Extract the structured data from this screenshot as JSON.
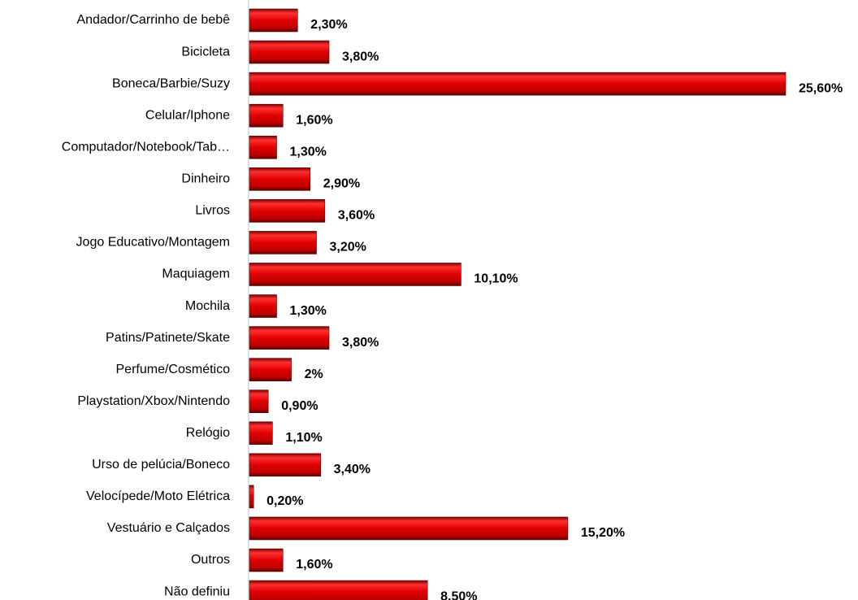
{
  "chart_data": {
    "type": "bar",
    "orientation": "horizontal",
    "color": "#e00000",
    "categories": [
      "Andador/Carrinho de bebê",
      "Bicicleta",
      "Boneca/Barbie/Suzy",
      "Celular/Iphone",
      "Computador/Notebook/Tab…",
      "Dinheiro",
      "Livros",
      "Jogo Educativo/Montagem",
      "Maquiagem",
      "Mochila",
      "Patins/Patinete/Skate",
      "Perfume/Cosmético",
      "Playstation/Xbox/Nintendo",
      "Relógio",
      "Urso de pelúcia/Boneco",
      "Velocípede/Moto Elétrica",
      "Vestuário e Calçados",
      "Outros",
      "Não definiu"
    ],
    "values": [
      2.3,
      3.8,
      25.6,
      1.6,
      1.3,
      2.9,
      3.6,
      3.2,
      10.1,
      1.3,
      3.8,
      2,
      0.9,
      1.1,
      3.4,
      0.2,
      15.2,
      1.6,
      8.5
    ],
    "value_labels": [
      "2,30%",
      "3,80%",
      "25,60%",
      "1,60%",
      "1,30%",
      "2,90%",
      "3,60%",
      "3,20%",
      "10,10%",
      "1,30%",
      "3,80%",
      "2%",
      "0,90%",
      "1,10%",
      "3,40%",
      "0,20%",
      "15,20%",
      "1,60%",
      "8,50%"
    ]
  }
}
